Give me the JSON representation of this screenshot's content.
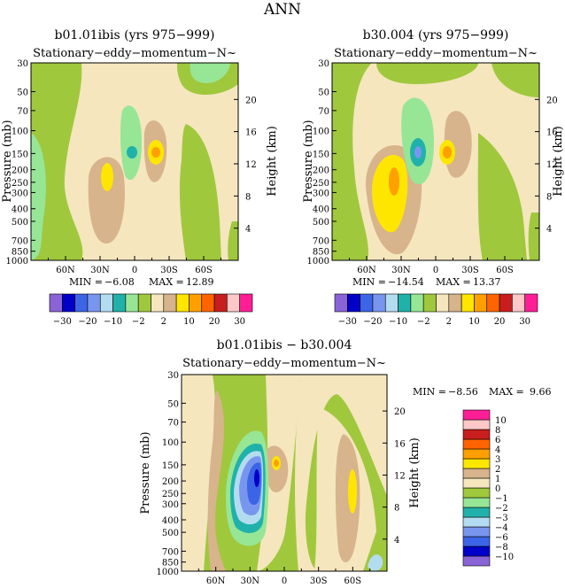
{
  "page_title": "ANN",
  "colors": {
    "c1": "#8a64d6",
    "c2": "#0000c8",
    "c3": "#3c64e6",
    "c4": "#7896ee",
    "c5": "#b4dcf0",
    "c6": "#20b2aa",
    "c7": "#96e696",
    "c8": "#a0c83c",
    "c9": "#f5e6be",
    "c10": "#d7b48c",
    "c11": "#ffe600",
    "c12": "#ffa000",
    "c13": "#ff6400",
    "c14": "#c81e1e",
    "c15": "#ffc8c8",
    "c16": "#ff1e96"
  },
  "chart_data": [
    {
      "type": "contour",
      "title": "b01.01ibis (yrs 975−999)",
      "subtitle": "Stationary−eddy−momentum−N~",
      "ylabel": "Pressure (mb)",
      "y2label": "Height (km)",
      "x_ticks": [
        "60N",
        "30N",
        "0",
        "30S",
        "60S"
      ],
      "x_values": [
        60,
        30,
        0,
        -30,
        -60
      ],
      "xlim": [
        90,
        -90
      ],
      "y_scale": "log",
      "y_ticks": [
        30,
        50,
        70,
        100,
        150,
        200,
        250,
        300,
        400,
        500,
        700,
        850,
        1000
      ],
      "ylim": [
        30,
        1000
      ],
      "height_ticks": [
        4,
        8,
        12,
        16,
        20
      ],
      "stats": {
        "min_label": "MIN = ",
        "min": "−6.08",
        "max_label": "MAX = ",
        "max": "12.89"
      },
      "features": [
        {
          "lat": 28,
          "p": 250,
          "value": 3
        },
        {
          "lat": -10,
          "p": 150,
          "value": 12.89
        },
        {
          "lat": 13,
          "p": 150,
          "value": -6.08
        }
      ],
      "colorbar": {
        "orientation": "horizontal",
        "levels": [
          -30,
          -20,
          -10,
          -2,
          2,
          10,
          20,
          30
        ],
        "tick_labels": [
          "−30",
          "−20",
          "−10",
          "−2",
          "2",
          "10",
          "20",
          "30"
        ]
      }
    },
    {
      "type": "contour",
      "title": "b30.004 (yrs 975−999)",
      "subtitle": "Stationary−eddy−momentum−N~",
      "ylabel": "Pressure (mb)",
      "y2label": "Height (km)",
      "x_ticks": [
        "60N",
        "30N",
        "0",
        "30S",
        "60S"
      ],
      "x_values": [
        60,
        30,
        0,
        -30,
        -60
      ],
      "xlim": [
        90,
        -90
      ],
      "y_scale": "log",
      "y_ticks": [
        30,
        50,
        70,
        100,
        150,
        200,
        250,
        300,
        400,
        500,
        700,
        850,
        1000
      ],
      "ylim": [
        30,
        1000
      ],
      "height_ticks": [
        4,
        8,
        12,
        16,
        20
      ],
      "stats": {
        "min_label": "MIN = ",
        "min": "−14.54",
        "max_label": "MAX = ",
        "max": "13.37"
      },
      "features": [
        {
          "lat": 30,
          "p": 230,
          "value": 5
        },
        {
          "lat": -10,
          "p": 150,
          "value": 13.37
        },
        {
          "lat": 13,
          "p": 150,
          "value": -14.54
        }
      ],
      "colorbar": {
        "orientation": "horizontal",
        "levels": [
          -30,
          -20,
          -10,
          -2,
          2,
          10,
          20,
          30
        ],
        "tick_labels": [
          "−30",
          "−20",
          "−10",
          "−2",
          "2",
          "10",
          "20",
          "30"
        ]
      }
    },
    {
      "type": "contour",
      "title": "b01.01ibis − b30.004",
      "subtitle": "Stationary−eddy−momentum−N~",
      "ylabel": "Pressure (mb)",
      "y2label": "Height (km)",
      "x_ticks": [
        "60N",
        "30N",
        "0",
        "30S",
        "60S"
      ],
      "x_values": [
        60,
        30,
        0,
        -30,
        -60
      ],
      "xlim": [
        90,
        -90
      ],
      "y_scale": "log",
      "y_ticks": [
        30,
        50,
        70,
        100,
        150,
        200,
        250,
        300,
        400,
        500,
        700,
        850,
        1000
      ],
      "ylim": [
        30,
        1000
      ],
      "height_ticks": [
        4,
        8,
        12,
        16,
        20
      ],
      "stats": {
        "min_label": "MIN = ",
        "min": "−8.56",
        "max_label": "MAX = ",
        "max": "9.66"
      },
      "features": [
        {
          "lat": 30,
          "p": 200,
          "value": -8.56
        },
        {
          "lat": -10,
          "p": 150,
          "value": 3
        },
        {
          "lat": -60,
          "p": 250,
          "value": 3
        }
      ],
      "colorbar": {
        "orientation": "vertical",
        "levels": [
          -10,
          -8,
          -6,
          -4,
          -3,
          -2,
          -1,
          0,
          1,
          2,
          3,
          4,
          6,
          8,
          10
        ],
        "tick_labels": [
          "−10",
          "−8",
          "−6",
          "−4",
          "−3",
          "−2",
          "−1",
          "0",
          "1",
          "2",
          "3",
          "4",
          "6",
          "8",
          "10"
        ]
      }
    }
  ]
}
